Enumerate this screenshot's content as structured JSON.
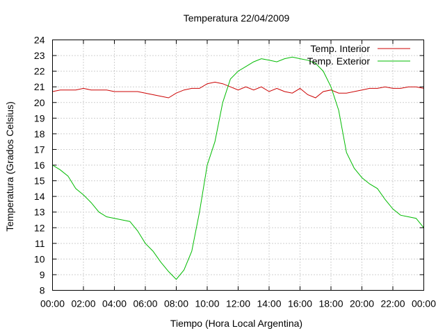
{
  "chart_data": {
    "type": "line",
    "title": "Temperatura 22/04/2009",
    "xlabel": "Tiempo (Hora Local Argentina)",
    "ylabel": "Temperatura (Grados Celsius)",
    "xlim": [
      0,
      24
    ],
    "ylim": [
      8,
      24
    ],
    "x_ticks": [
      "00:00",
      "02:00",
      "04:00",
      "06:00",
      "08:00",
      "10:00",
      "12:00",
      "14:00",
      "16:00",
      "18:00",
      "20:00",
      "22:00",
      "00:00"
    ],
    "y_ticks": [
      8,
      9,
      10,
      11,
      12,
      13,
      14,
      15,
      16,
      17,
      18,
      19,
      20,
      21,
      22,
      23,
      24
    ],
    "grid": true,
    "legend_position": "top-right",
    "series": [
      {
        "name": "Temp. Interior",
        "color": "#cc0000",
        "x": [
          0,
          0.5,
          1,
          1.5,
          2,
          2.5,
          3,
          3.5,
          4,
          4.5,
          5,
          5.5,
          6,
          6.5,
          7,
          7.5,
          8,
          8.5,
          9,
          9.5,
          10,
          10.5,
          11,
          11.5,
          12,
          12.5,
          13,
          13.5,
          14,
          14.5,
          15,
          15.5,
          16,
          16.5,
          17,
          17.5,
          18,
          18.5,
          19,
          19.5,
          20,
          20.5,
          21,
          21.5,
          22,
          22.5,
          23,
          23.5,
          24
        ],
        "values": [
          20.7,
          20.8,
          20.8,
          20.8,
          20.9,
          20.8,
          20.8,
          20.8,
          20.7,
          20.7,
          20.7,
          20.7,
          20.6,
          20.5,
          20.4,
          20.3,
          20.6,
          20.8,
          20.9,
          20.9,
          21.2,
          21.3,
          21.2,
          21.0,
          20.8,
          21.0,
          20.8,
          21.0,
          20.7,
          20.9,
          20.7,
          20.6,
          20.9,
          20.5,
          20.3,
          20.7,
          20.8,
          20.6,
          20.6,
          20.7,
          20.8,
          20.9,
          20.9,
          21.0,
          20.9,
          20.9,
          21.0,
          21.0,
          20.9
        ]
      },
      {
        "name": "Temp. Exterior",
        "color": "#00bb00",
        "x": [
          0,
          0.5,
          1,
          1.5,
          2,
          2.5,
          3,
          3.5,
          4,
          4.5,
          5,
          5.5,
          6,
          6.5,
          7,
          7.5,
          8,
          8.5,
          9,
          9.5,
          10,
          10.5,
          11,
          11.5,
          12,
          12.5,
          13,
          13.5,
          14,
          14.5,
          15,
          15.5,
          16,
          16.5,
          17,
          17.5,
          18,
          18.5,
          19,
          19.5,
          20,
          20.5,
          21,
          21.5,
          22,
          22.5,
          23,
          23.5,
          24
        ],
        "values": [
          16.0,
          15.7,
          15.3,
          14.5,
          14.1,
          13.6,
          13.0,
          12.7,
          12.6,
          12.5,
          12.4,
          11.8,
          11.0,
          10.5,
          9.8,
          9.2,
          8.7,
          9.3,
          10.5,
          13.0,
          16.0,
          17.5,
          20.0,
          21.5,
          22.0,
          22.3,
          22.6,
          22.8,
          22.7,
          22.6,
          22.8,
          22.9,
          22.8,
          22.7,
          22.5,
          22.0,
          21.0,
          19.5,
          16.8,
          15.8,
          15.2,
          14.8,
          14.5,
          13.8,
          13.2,
          12.8,
          12.7,
          12.6,
          12.0
        ]
      }
    ]
  }
}
